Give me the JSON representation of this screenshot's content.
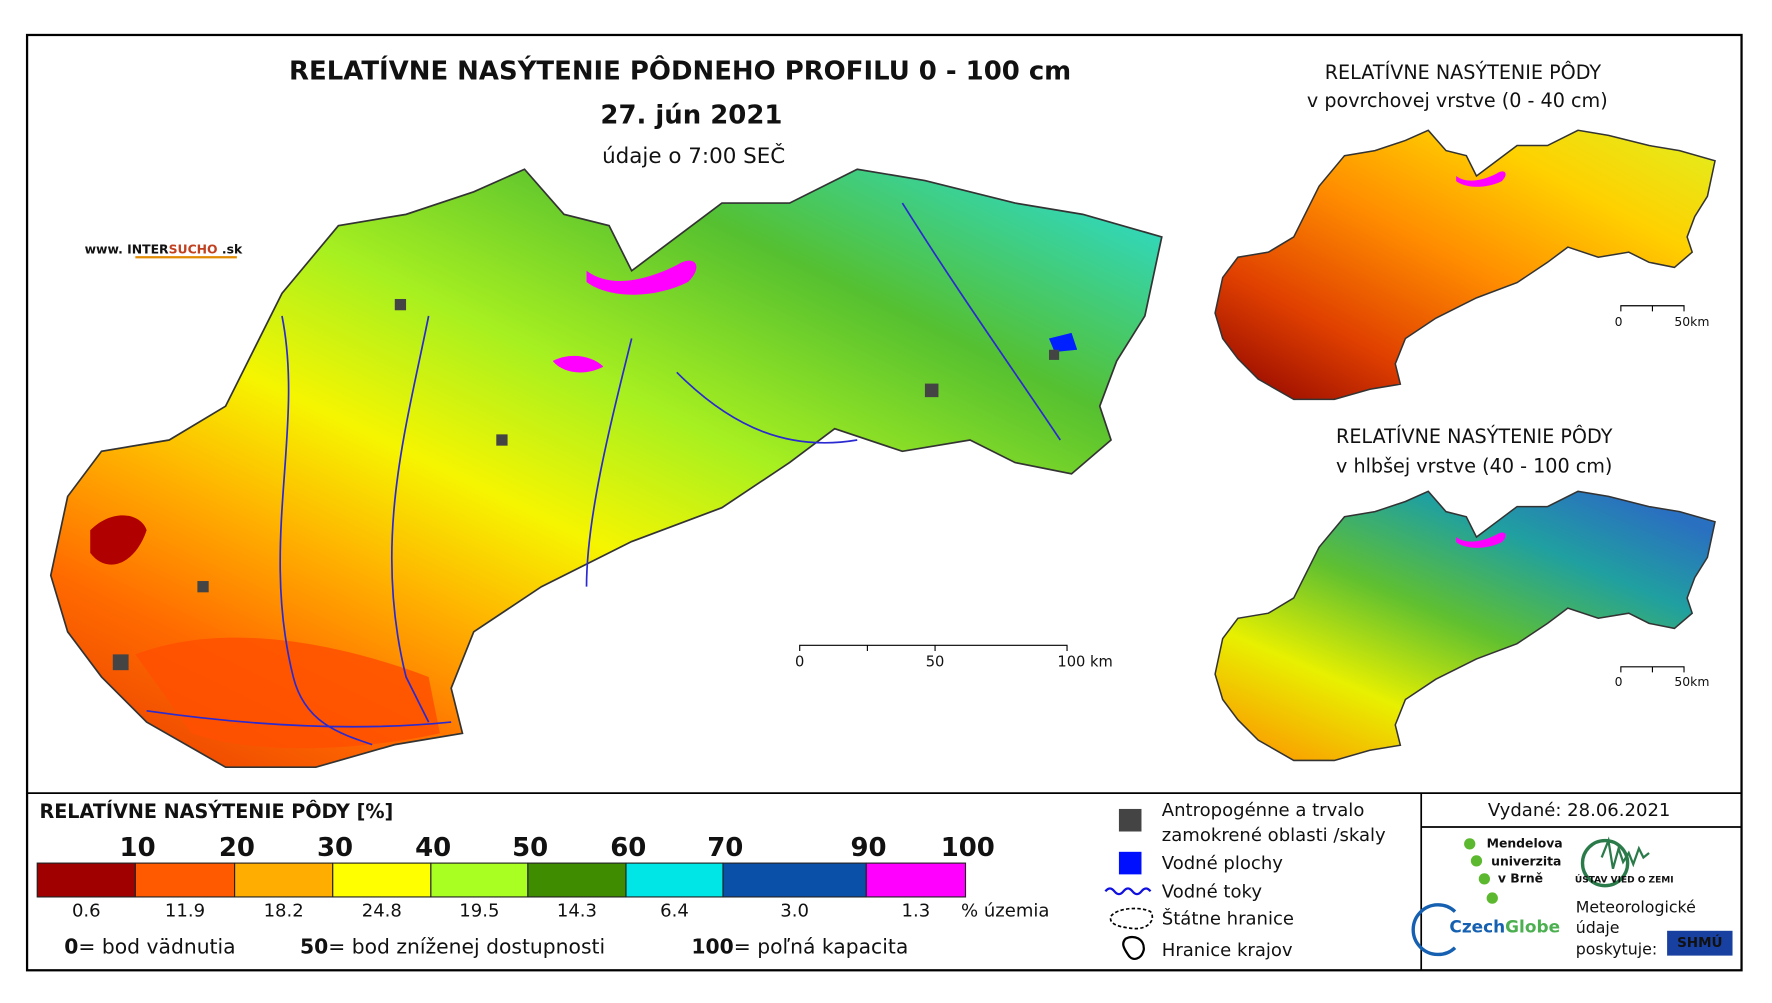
{
  "main_map": {
    "title": "RELATÍVNE NASÝTENIE PÔDNEHO PROFILU 0 - 100 cm",
    "date": "27. jún 2021",
    "time_note": "údaje o 7:00 SEČ",
    "website": {
      "prefix": "www. INTER",
      "highlight": "SUCHO",
      "suffix": " .sk"
    },
    "scale": [
      "0",
      "50",
      "100 km"
    ]
  },
  "inset_maps": [
    {
      "title": "RELATÍVNE NASÝTENIE PÔDY",
      "subtitle": "v povrchovej vrstve (0 - 40 cm)",
      "scale": [
        "0",
        "50km"
      ]
    },
    {
      "title": "RELATÍVNE NASÝTENIE PÔDY",
      "subtitle": "v hlbšej vrstve (40 - 100 cm)",
      "scale": [
        "0",
        "50km"
      ]
    }
  ],
  "legend": {
    "title": "RELATÍVNE NASÝTENIE PÔDY [%]",
    "breaks": [
      10,
      20,
      30,
      40,
      50,
      60,
      70,
      90,
      100
    ],
    "classes": [
      {
        "color": "#a00000",
        "share": "0.6"
      },
      {
        "color": "#ff5a00",
        "share": "11.9"
      },
      {
        "color": "#ffad00",
        "share": "18.2"
      },
      {
        "color": "#ffff00",
        "share": "24.8"
      },
      {
        "color": "#aaff22",
        "share": "19.5"
      },
      {
        "color": "#3f8c00",
        "share": "14.3"
      },
      {
        "color": "#00e6e6",
        "share": "6.4"
      },
      {
        "color": "#0a4fa8",
        "share": "3.0"
      },
      {
        "color": "#ff00ff",
        "share": "1.3"
      }
    ],
    "share_unit": "% územia",
    "notes": [
      {
        "value": "0",
        "text": "= bod vädnutia"
      },
      {
        "value": "50",
        "text": "= bod zníženej dostupnosti"
      },
      {
        "value": "100",
        "text": "= poľná kapacita"
      }
    ]
  },
  "symbols": [
    {
      "lines": [
        "Antropogénne a trvalo",
        "zamokrené oblasti /skaly"
      ]
    },
    {
      "lines": [
        "Vodné plochy"
      ]
    },
    {
      "lines": [
        "Vodné toky"
      ]
    },
    {
      "lines": [
        "Štátne hranice"
      ]
    },
    {
      "lines": [
        "Hranice krajov"
      ]
    }
  ],
  "issued": "Vydané: 28.06.2021",
  "logos": {
    "mendel": [
      "Mendelova",
      "univerzita",
      "v Brně"
    ],
    "ustav": "ÚSTAV VIED O ZEMI",
    "czechglobe": {
      "a": "Czech",
      "b": "Globe"
    },
    "meteo": [
      "Meteorologické",
      "údaje",
      "poskytuje:"
    ],
    "shmu": "SHMÚ"
  }
}
